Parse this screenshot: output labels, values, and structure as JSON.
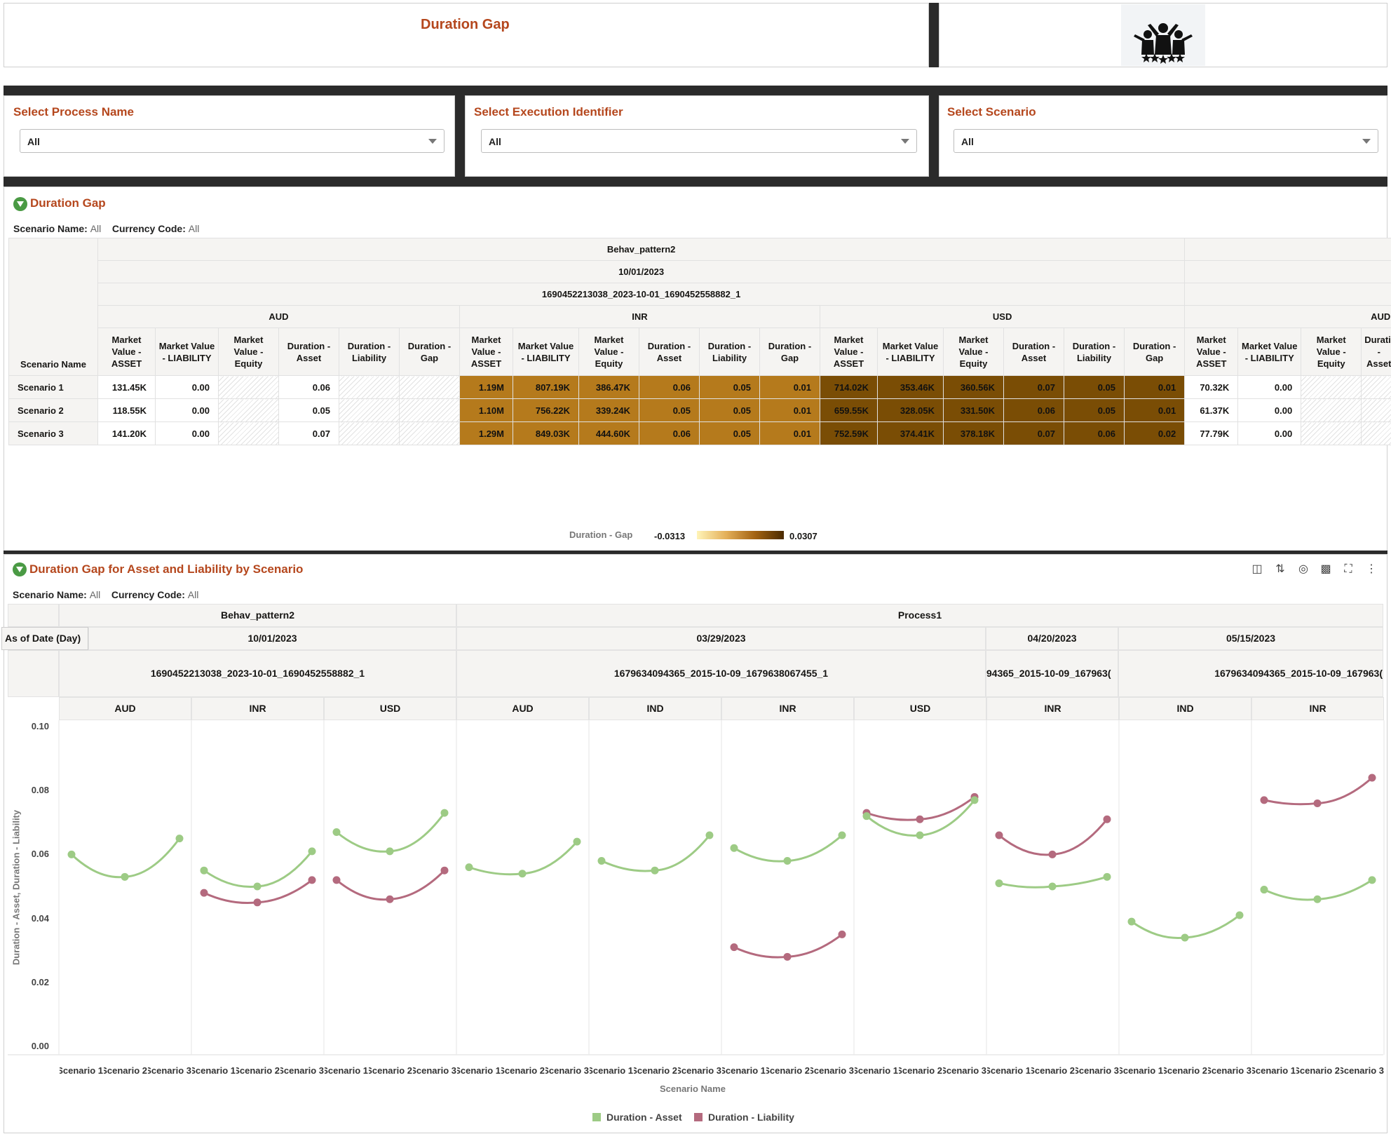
{
  "header": {
    "title": "Duration Gap",
    "logo_icon": "people-celebrating-stars-icon"
  },
  "selectors": [
    {
      "label": "Select Process Name",
      "value": "All"
    },
    {
      "label": "Select Execution Identifier",
      "value": "All"
    },
    {
      "label": "Select Scenario",
      "value": "All"
    }
  ],
  "table_panel": {
    "title": "Duration Gap",
    "filter_scenario_label": "Scenario Name:",
    "filter_scenario_value": "All",
    "filter_currency_label": "Currency Code:",
    "filter_currency_value": "All",
    "process": "Behav_pattern2",
    "date": "10/01/2023",
    "execution_id": "1690452213038_2023-10-01_1690452558882_1",
    "row_header_label": "Scenario Name",
    "currencies": [
      "AUD",
      "INR",
      "USD",
      "AUD"
    ],
    "measures": [
      "Market Value - ASSET",
      "Market Value - LIABILITY",
      "Market Value - Equity",
      "Duration - Asset",
      "Duration - Liability",
      "Duration - Gap"
    ],
    "rows": [
      {
        "name": "Scenario 1",
        "aud": [
          "131.45K",
          "0.00",
          "",
          "0.06",
          "",
          ""
        ],
        "inr": [
          "1.19M",
          "807.19K",
          "386.47K",
          "0.06",
          "0.05",
          "0.01"
        ],
        "usd": [
          "714.02K",
          "353.46K",
          "360.56K",
          "0.07",
          "0.05",
          "0.01"
        ],
        "aud2": [
          "70.32K",
          "0.00",
          "",
          ""
        ]
      },
      {
        "name": "Scenario 2",
        "aud": [
          "118.55K",
          "0.00",
          "",
          "0.05",
          "",
          ""
        ],
        "inr": [
          "1.10M",
          "756.22K",
          "339.24K",
          "0.05",
          "0.05",
          "0.01"
        ],
        "usd": [
          "659.55K",
          "328.05K",
          "331.50K",
          "0.06",
          "0.05",
          "0.01"
        ],
        "aud2": [
          "61.37K",
          "0.00",
          "",
          ""
        ]
      },
      {
        "name": "Scenario 3",
        "aud": [
          "141.20K",
          "0.00",
          "",
          "0.07",
          "",
          ""
        ],
        "inr": [
          "1.29M",
          "849.03K",
          "444.60K",
          "0.06",
          "0.05",
          "0.01"
        ],
        "usd": [
          "752.59K",
          "374.41K",
          "378.18K",
          "0.07",
          "0.06",
          "0.02"
        ],
        "aud2": [
          "77.79K",
          "0.00",
          "",
          ""
        ]
      }
    ],
    "legend_label": "Duration - Gap",
    "legend_min": "-0.0313",
    "legend_max": "0.0307",
    "cell_colors": {
      "light": "#b57a1c",
      "mid": "#9a6410",
      "dark": "#7a4d05"
    }
  },
  "chart_panel": {
    "title": "Duration Gap for Asset and Liability by Scenario",
    "filter_scenario_label": "Scenario Name:",
    "filter_scenario_value": "All",
    "filter_currency_label": "Currency Code:",
    "filter_currency_value": "All",
    "toolbar_icons": [
      "layout-icon",
      "sort-icon",
      "target-icon",
      "chart-settings-icon",
      "fullscreen-icon",
      "more-options-icon"
    ],
    "as_of_label": "As of Date (Day)",
    "processes": [
      "Behav_pattern2",
      "Process1"
    ],
    "dates": [
      "10/01/2023",
      "03/29/2023",
      "04/20/2023",
      "05/15/2023"
    ],
    "execution_ids": [
      "1690452213038_2023-10-01_1690452558882_1",
      "1679634094365_2015-10-09_1679638067455_1",
      "94365_2015-10-09_167963(",
      "1679634094365_2015-10-09_167963("
    ]
  },
  "chart_data": {
    "type": "line",
    "ylabel": "Duration - Asset, Duration - Liability",
    "xlabel": "Scenario Name",
    "ylim": [
      0,
      0.1
    ],
    "yticks": [
      "0.00",
      "0.02",
      "0.04",
      "0.06",
      "0.08",
      "0.10"
    ],
    "categories": [
      "Scenario 1",
      "Scenario 2",
      "Scenario 3"
    ],
    "x_tick_labels": [
      "Scenario 1",
      "Scenario 2",
      "Scenario 3"
    ],
    "colors": {
      "asset": "#9dcb85",
      "liability": "#b46a7e"
    },
    "legend": [
      "Duration - Asset",
      "Duration - Liability"
    ],
    "panels": [
      {
        "currency": "AUD",
        "asset": [
          0.06,
          0.053,
          0.065
        ],
        "liability": null
      },
      {
        "currency": "INR",
        "asset": [
          0.055,
          0.05,
          0.061
        ],
        "liability": [
          0.048,
          0.045,
          0.052
        ]
      },
      {
        "currency": "USD",
        "asset": [
          0.067,
          0.061,
          0.073
        ],
        "liability": [
          0.052,
          0.046,
          0.055
        ]
      },
      {
        "currency": "AUD",
        "asset": [
          0.056,
          0.054,
          0.064
        ],
        "liability": null
      },
      {
        "currency": "IND",
        "asset": [
          0.058,
          0.055,
          0.066
        ],
        "liability": null
      },
      {
        "currency": "INR",
        "asset": [
          0.062,
          0.058,
          0.066
        ],
        "liability": [
          0.031,
          0.028,
          0.035
        ]
      },
      {
        "currency": "USD",
        "asset": [
          0.072,
          0.066,
          0.077
        ],
        "liability": [
          0.073,
          0.071,
          0.078
        ]
      },
      {
        "currency": "INR",
        "asset": [
          0.051,
          0.05,
          0.053
        ],
        "liability": [
          0.066,
          0.06,
          0.071
        ]
      },
      {
        "currency": "IND",
        "asset": [
          0.039,
          0.034,
          0.041
        ],
        "liability": null
      },
      {
        "currency": "INR",
        "asset": [
          0.049,
          0.046,
          0.052
        ],
        "liability": [
          0.077,
          0.076,
          0.084
        ]
      }
    ]
  }
}
